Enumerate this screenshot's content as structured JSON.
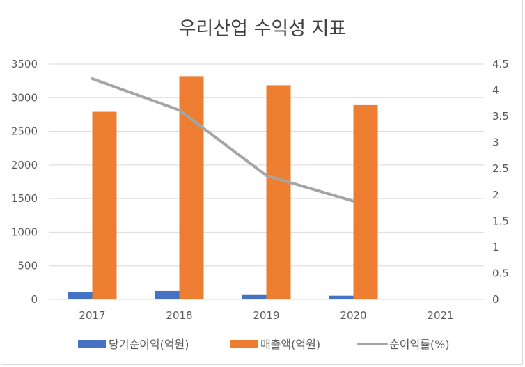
{
  "chart_data": {
    "type": "bar",
    "title": "우리산업 수익성 지표",
    "categories": [
      "2017",
      "2018",
      "2019",
      "2020",
      "2021"
    ],
    "series": [
      {
        "name": "당기순이익(억원)",
        "type": "bar",
        "axis": "left",
        "color": "#4472c4",
        "values": [
          110,
          125,
          75,
          55,
          null
        ]
      },
      {
        "name": "매출액(억원)",
        "type": "bar",
        "axis": "left",
        "color": "#ed7d31",
        "values": [
          2790,
          3320,
          3185,
          2890,
          null
        ]
      },
      {
        "name": "순이익률(%)",
        "type": "line",
        "axis": "right",
        "color": "#a5a5a5",
        "values": [
          4.22,
          3.62,
          2.37,
          1.88,
          null
        ]
      }
    ],
    "y_left": {
      "lim": [
        0,
        3500
      ],
      "ticks": [
        0,
        500,
        1000,
        1500,
        2000,
        2500,
        3000,
        3500
      ]
    },
    "y_right": {
      "lim": [
        0,
        4.5
      ],
      "ticks": [
        "0",
        "0.5",
        "1",
        "1.5",
        "2",
        "2.5",
        "3",
        "3.5",
        "4",
        "4.5"
      ]
    },
    "grid": true,
    "legend": "bottom"
  }
}
